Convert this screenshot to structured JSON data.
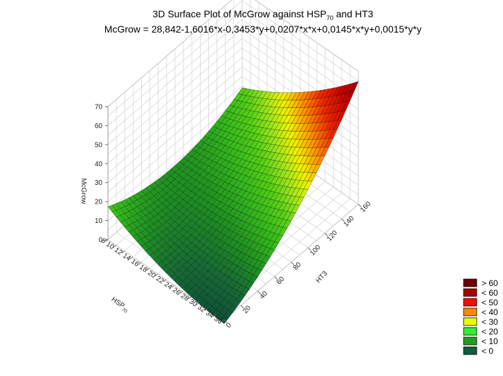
{
  "title_parts": {
    "pre": "3D Surface Plot of McGrow against HSP",
    "sub": "70",
    "post": " and HT3"
  },
  "subtitle": "McGrow = 28,842-1,6016*x-0,3453*y+0,0207*x*x+0,0145*x*y+0,0015*y*y",
  "chart_data": {
    "type": "surface3d",
    "title": "3D Surface Plot of McGrow against HSP70 and HT3",
    "equation": "McGrow = 28,842-1,6016*x-0,3453*y+0,0207*x*x+0,0145*x*y+0,0015*y*y",
    "coefficients": {
      "c": 28.842,
      "x": -1.6016,
      "y": -0.3453,
      "xx": 0.0207,
      "xy": 0.0145,
      "yy": 0.0015
    },
    "x_axis": {
      "label": "HSP",
      "label_sub": "70",
      "range": [
        8,
        36
      ],
      "ticks": [
        8,
        10,
        12,
        14,
        16,
        18,
        20,
        22,
        24,
        26,
        28,
        30,
        32,
        34,
        36
      ]
    },
    "y_axis": {
      "label": "HT3",
      "range": [
        0,
        160
      ],
      "ticks": [
        0,
        20,
        40,
        60,
        80,
        100,
        120,
        140,
        160
      ]
    },
    "z_axis": {
      "label": "McGrow",
      "range": [
        0,
        70
      ],
      "ticks": [
        0,
        10,
        20,
        30,
        40,
        50,
        60,
        70
      ]
    },
    "legend": {
      "placement": "bottom-right",
      "items": [
        {
          "label": "> 60",
          "color": "#6b0000"
        },
        {
          "label": "< 60",
          "color": "#a50000"
        },
        {
          "label": "< 50",
          "color": "#ee1100"
        },
        {
          "label": "< 40",
          "color": "#ff8800"
        },
        {
          "label": "< 30",
          "color": "#e8ff00"
        },
        {
          "label": "< 20",
          "color": "#33ee33"
        },
        {
          "label": "< 10",
          "color": "#1fa01f"
        },
        {
          "label": "< 0",
          "color": "#0f5f3f"
        }
      ]
    }
  }
}
